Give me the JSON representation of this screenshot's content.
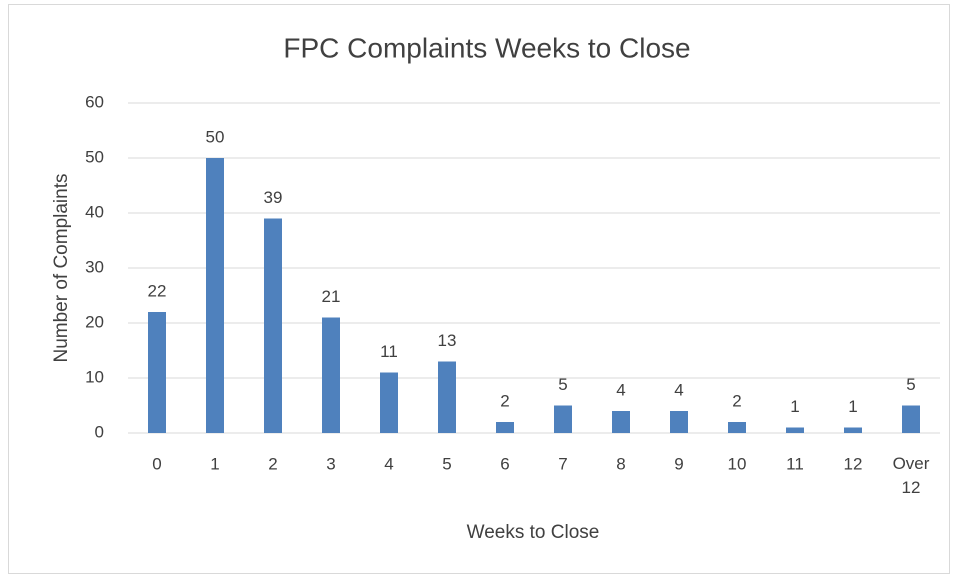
{
  "chart_data": {
    "type": "bar",
    "title": "FPC Complaints Weeks to Close",
    "x_label": "Weeks to Close",
    "y_label": "Number of Complaints",
    "categories": [
      "0",
      "1",
      "2",
      "3",
      "4",
      "5",
      "6",
      "7",
      "8",
      "9",
      "10",
      "11",
      "12",
      "Over 12"
    ],
    "values": [
      22,
      50,
      39,
      21,
      11,
      13,
      2,
      5,
      4,
      4,
      2,
      1,
      1,
      5
    ],
    "color": "#4f81bd",
    "ylim": [
      0,
      60
    ],
    "yticks": [
      0,
      10,
      20,
      30,
      40,
      50,
      60
    ],
    "grid": true,
    "data_labels": true
  }
}
